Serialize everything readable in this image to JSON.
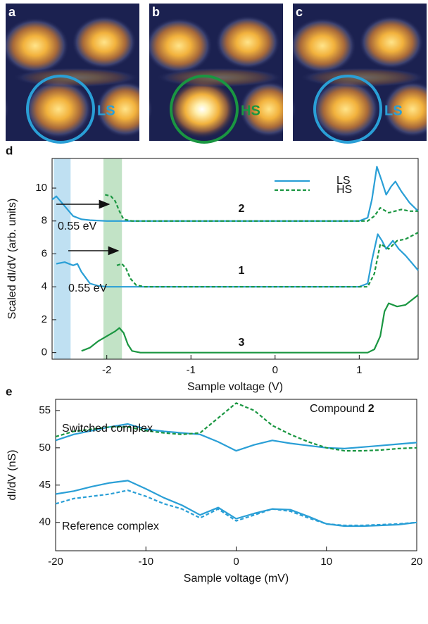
{
  "images": [
    {
      "letter": "a",
      "label": "LS",
      "color": "#2a9fd6"
    },
    {
      "letter": "b",
      "label": "HS",
      "color": "#1a9641"
    },
    {
      "letter": "c",
      "label": "LS",
      "color": "#2a9fd6"
    }
  ],
  "chart_data": [
    {
      "type": "line",
      "panel": "d",
      "xlabel": "Sample voltage (V)",
      "ylabel": "Scaled dI/dV (arb. units)",
      "xlim": [
        -2.65,
        1.7
      ],
      "ylim": [
        -0.4,
        11.8
      ],
      "xticks": [
        -2,
        -1,
        0,
        1
      ],
      "yticks": [
        0,
        2,
        4,
        6,
        8,
        10
      ],
      "bands": [
        {
          "range": [
            -2.63,
            -2.43
          ],
          "color": "#bfe0f2"
        },
        {
          "range": [
            -2.04,
            -1.82
          ],
          "color": "#c2e3c6"
        }
      ],
      "series": [
        {
          "name": "LS",
          "color": "#2a9fd6",
          "dash": false,
          "x": [
            -2.65,
            -2.6,
            -2.5,
            -2.4,
            -2.3,
            -2.2,
            -2.0,
            1.0,
            1.1,
            1.15,
            1.21,
            1.27,
            1.32,
            1.38,
            1.43,
            1.5,
            1.6,
            1.7
          ],
          "values": [
            9.3,
            9.5,
            8.9,
            8.3,
            8.1,
            8.05,
            8.0,
            8.0,
            8.2,
            9.3,
            11.3,
            10.4,
            9.6,
            10.1,
            10.4,
            9.8,
            9.1,
            8.6
          ]
        },
        {
          "name": "HS",
          "color": "#1a9641",
          "dash": true,
          "x": [
            -2.02,
            -1.95,
            -1.9,
            -1.85,
            -1.8,
            -1.7,
            1.1,
            1.18,
            1.25,
            1.35,
            1.5,
            1.6,
            1.7
          ],
          "values": [
            9.6,
            9.5,
            9.2,
            8.6,
            8.1,
            8.0,
            8.0,
            8.3,
            8.8,
            8.5,
            8.7,
            8.6,
            8.6
          ]
        },
        {
          "color": "#2a9fd6",
          "dash": false,
          "x": [
            -2.6,
            -2.5,
            -2.4,
            -2.35,
            -2.3,
            -2.2,
            -2.1,
            -2.0,
            1.0,
            1.1,
            1.15,
            1.22,
            1.27,
            1.32,
            1.4,
            1.47,
            1.55,
            1.7
          ],
          "values": [
            5.4,
            5.5,
            5.3,
            5.4,
            4.9,
            4.2,
            4.05,
            4.0,
            4.0,
            4.2,
            5.6,
            7.2,
            6.8,
            6.3,
            6.8,
            6.3,
            5.9,
            5.0
          ]
        },
        {
          "color": "#1a9641",
          "dash": true,
          "x": [
            -1.88,
            -1.82,
            -1.77,
            -1.72,
            -1.65,
            -1.55,
            1.1,
            1.18,
            1.25,
            1.35,
            1.45,
            1.55,
            1.7
          ],
          "values": [
            5.3,
            5.4,
            5.1,
            4.5,
            4.1,
            4.0,
            4.0,
            4.8,
            6.6,
            6.3,
            6.8,
            6.9,
            7.3
          ]
        },
        {
          "color": "#1a9641",
          "dash": false,
          "x": [
            -2.3,
            -2.2,
            -2.1,
            -2.0,
            -1.9,
            -1.85,
            -1.8,
            -1.75,
            -1.7,
            -1.6,
            1.1,
            1.18,
            1.25,
            1.3,
            1.35,
            1.45,
            1.55,
            1.7
          ],
          "values": [
            0.1,
            0.3,
            0.7,
            1.0,
            1.3,
            1.5,
            1.2,
            0.5,
            0.1,
            0.0,
            0.0,
            0.2,
            1.0,
            2.5,
            3.0,
            2.8,
            2.9,
            3.5
          ]
        }
      ],
      "annotations": [
        "0.55 eV",
        "0.55 eV"
      ],
      "curve_labels": [
        "2",
        "1",
        "3"
      ]
    },
    {
      "type": "line",
      "panel": "e",
      "title": "Compound",
      "title_number": "2",
      "xlabel": "Sample voltage (mV)",
      "ylabel": "dI/dV (nS)",
      "xlim": [
        -20,
        20
      ],
      "ylim": [
        36.2,
        56.5
      ],
      "xticks": [
        -20,
        -10,
        0,
        10,
        20
      ],
      "yticks": [
        40,
        45,
        50,
        55
      ],
      "x": [
        -20,
        -18,
        -16,
        -14,
        -12,
        -10,
        -8,
        -6,
        -4,
        -2,
        0,
        2,
        4,
        6,
        8,
        10,
        12,
        14,
        16,
        18,
        20
      ],
      "series": [
        {
          "color": "#2a9fd6",
          "dash": false,
          "values": [
            51.0,
            51.8,
            52.3,
            52.8,
            53.2,
            52.5,
            52.2,
            52.0,
            51.8,
            50.8,
            49.6,
            50.4,
            51.0,
            50.6,
            50.3,
            50.0,
            49.9,
            50.1,
            50.3,
            50.5,
            50.7
          ]
        },
        {
          "color": "#1a9641",
          "dash": true,
          "values": [
            51.5,
            52.2,
            52.5,
            52.8,
            52.8,
            52.3,
            52.0,
            51.8,
            52.0,
            54.0,
            56.0,
            55.0,
            53.0,
            51.8,
            50.8,
            50.0,
            49.6,
            49.6,
            49.7,
            49.9,
            50.0
          ]
        },
        {
          "color": "#2a9fd6",
          "dash": false,
          "values": [
            43.8,
            44.2,
            44.8,
            45.3,
            45.6,
            44.5,
            43.3,
            42.3,
            41.0,
            42.0,
            40.5,
            41.2,
            41.8,
            41.7,
            40.8,
            39.8,
            39.5,
            39.5,
            39.6,
            39.7,
            40.0
          ]
        },
        {
          "color": "#2a9fd6",
          "dash": true,
          "values": [
            42.5,
            43.2,
            43.5,
            43.8,
            44.3,
            43.5,
            42.5,
            41.8,
            40.6,
            41.8,
            40.2,
            41.0,
            41.8,
            41.5,
            40.6,
            39.8,
            39.6,
            39.6,
            39.7,
            39.8,
            40.0
          ]
        }
      ],
      "annotations": [
        "Switched complex",
        "Reference complex"
      ]
    }
  ]
}
